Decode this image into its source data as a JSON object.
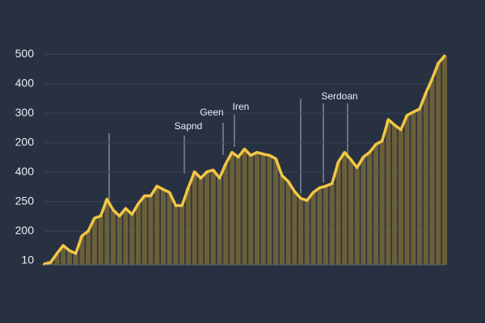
{
  "chart_data": {
    "type": "area",
    "line_color": "#f2c744",
    "fill_color": "#6e6238",
    "ylim": [
      0,
      510
    ],
    "yticks": [
      500,
      {
        "value": 430,
        "label": "400"
      },
      {
        "value": 360,
        "label": "300"
      },
      {
        "value": 290,
        "label": "200"
      },
      {
        "value": 220,
        "label": "400"
      },
      {
        "value": 150,
        "label": "250"
      },
      {
        "value": 80,
        "label": "200"
      },
      10
    ],
    "grid": true,
    "values": [
      2,
      6,
      27,
      46,
      34,
      27,
      69,
      80,
      111,
      116,
      156,
      130,
      116,
      134,
      120,
      145,
      164,
      164,
      187,
      179,
      172,
      141,
      141,
      183,
      221,
      206,
      221,
      225,
      206,
      240,
      267,
      256,
      275,
      260,
      267,
      263,
      260,
      252,
      212,
      198,
      174,
      158,
      153,
      172,
      183,
      187,
      193,
      244,
      267,
      250,
      231,
      256,
      267,
      286,
      294,
      345,
      332,
      321,
      355,
      363,
      370,
      408,
      441,
      479,
      496
    ],
    "annotations": [
      "Sapnd",
      "Geen",
      "Iren",
      "Serdoan"
    ]
  }
}
